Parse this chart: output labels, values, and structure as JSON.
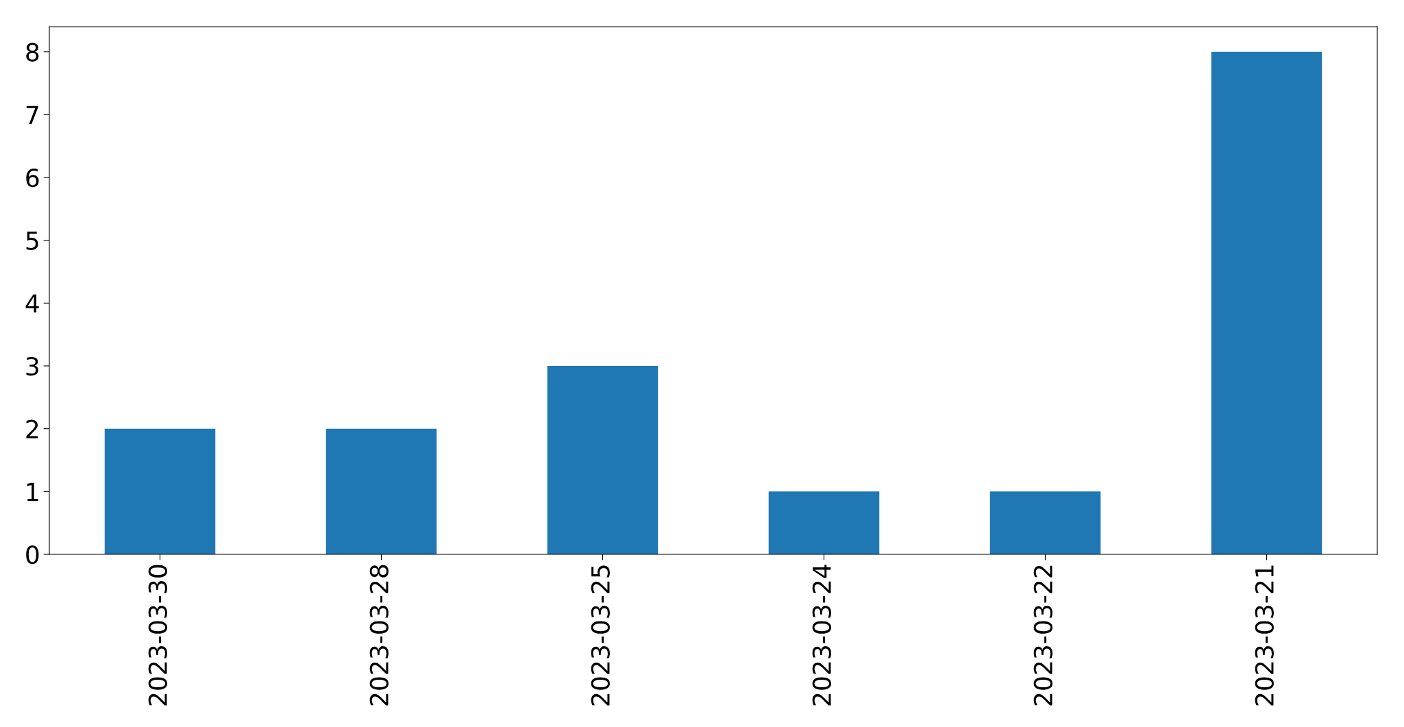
{
  "chart_data": {
    "type": "bar",
    "categories": [
      "2023-03-30",
      "2023-03-28",
      "2023-03-25",
      "2023-03-24",
      "2023-03-22",
      "2023-03-21"
    ],
    "values": [
      2,
      2,
      3,
      1,
      1,
      8
    ],
    "color": "#1f77b4",
    "ylim": [
      0,
      8.4
    ],
    "yticks": [
      0,
      1,
      2,
      3,
      4,
      5,
      6,
      7,
      8
    ],
    "grid": false,
    "legend": false
  }
}
